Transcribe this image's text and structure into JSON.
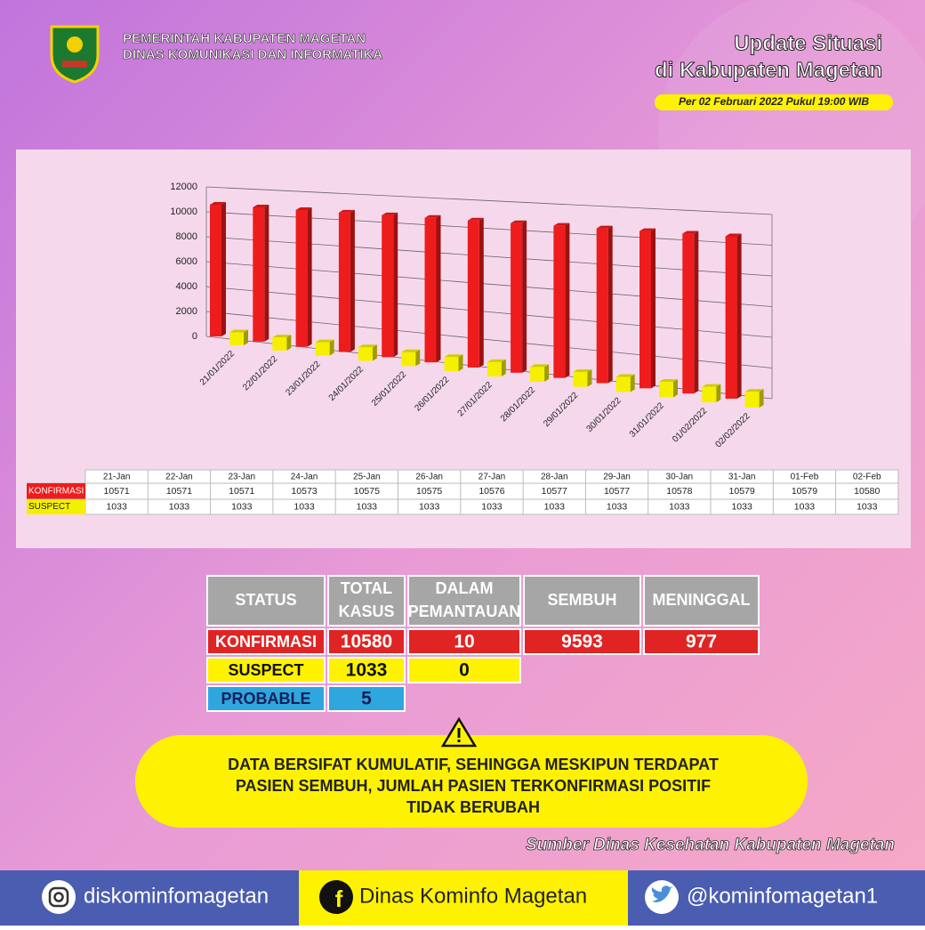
{
  "header": {
    "org_lines": [
      "PEMERINTAH KABUPATEN MAGETAN",
      "DINAS KOMUNIKASI DAN INFORMATIKA"
    ],
    "title_lines": [
      "Update Situasi",
      "di Kabupaten Magetan"
    ],
    "date": "Per 02 Februari 2022 Pukul 19:00 WIB"
  },
  "chart_data": {
    "type": "bar",
    "categories": [
      "21/01/2022",
      "22/01/2022",
      "23/01/2022",
      "24/01/2022",
      "25/01/2022",
      "26/01/2022",
      "27/01/2022",
      "28/01/2022",
      "29/01/2022",
      "30/01/2022",
      "31/01/2022",
      "01/02/2022",
      "02/02/2022"
    ],
    "table_columns": [
      "21-Jan",
      "22-Jan",
      "23-Jan",
      "24-Jan",
      "25-Jan",
      "26-Jan",
      "27-Jan",
      "28-Jan",
      "29-Jan",
      "30-Jan",
      "31-Jan",
      "01-Feb",
      "02-Feb"
    ],
    "series": [
      {
        "name": "KONFIRMASI",
        "color": "#ee1c1c",
        "values": [
          10571,
          10571,
          10571,
          10573,
          10575,
          10575,
          10576,
          10577,
          10577,
          10578,
          10579,
          10579,
          10580
        ]
      },
      {
        "name": "SUSPECT",
        "color": "#f5f000",
        "values": [
          1033,
          1033,
          1033,
          1033,
          1033,
          1033,
          1033,
          1033,
          1033,
          1033,
          1033,
          1033,
          1033
        ]
      }
    ],
    "ylim": [
      0,
      12000
    ],
    "yticks": [
      0,
      2000,
      4000,
      6000,
      8000,
      10000,
      12000
    ],
    "grid": true
  },
  "status_table": {
    "header": [
      [
        "STATUS"
      ],
      [
        "TOTAL",
        "KASUS"
      ],
      [
        "DALAM",
        "PEMANTAUAN"
      ],
      [
        "SEMBUH"
      ],
      [
        "MENINGGAL"
      ]
    ],
    "rows": [
      [
        "KONFIRMASI",
        10580,
        10,
        9593,
        977
      ],
      [
        "SUSPECT",
        1033,
        0
      ],
      [
        "PROBABLE",
        5
      ]
    ]
  },
  "notice": [
    "DATA BERSIFAT KUMULATIF, SEHINGGA MESKIPUN TERDAPAT",
    "PASIEN SEMBUH, JUMLAH PASIEN TERKONFIRMASI POSITIF",
    "TIDAK BERUBAH"
  ],
  "source": "Sumber Dinas Kesehatan Kabupaten Magetan",
  "footer": [
    "diskominfomagetan",
    "Dinas Kominfo Magetan",
    "@kominfomagetan1"
  ]
}
